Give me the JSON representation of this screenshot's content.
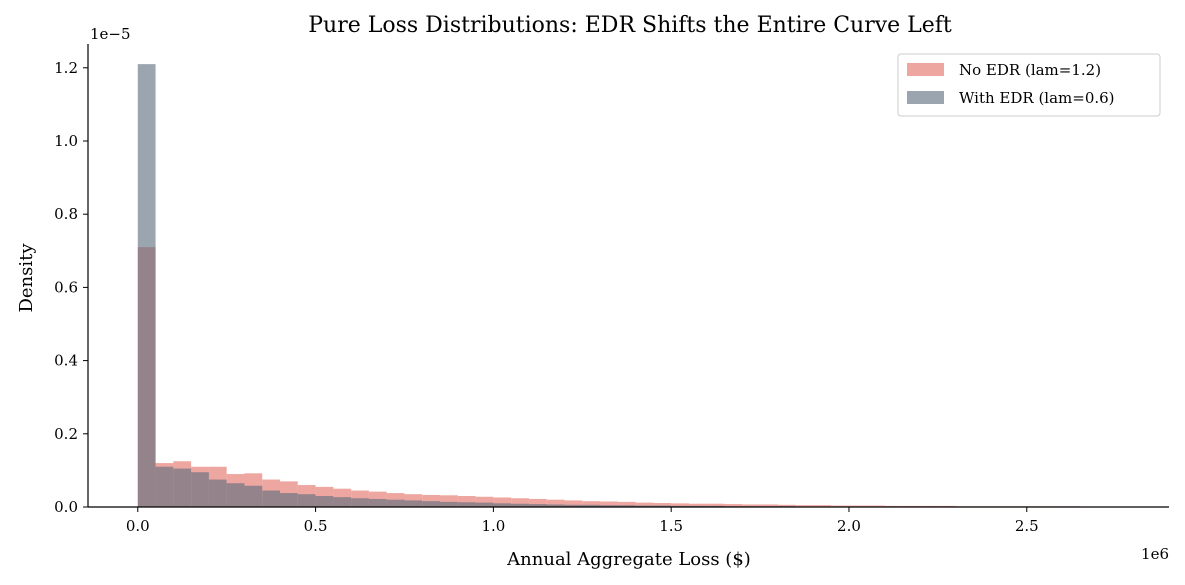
{
  "chart_data": {
    "type": "histogram",
    "title": "Pure Loss Distributions: EDR Shifts the Entire Curve Left",
    "xlabel": "Annual Aggregate Loss ($)",
    "ylabel": "Density",
    "x_multiplier_label": "1e6",
    "y_multiplier_label": "1e−5",
    "xlim": [
      -0.14,
      2.9
    ],
    "ylim": [
      0,
      1.265
    ],
    "x_unit_scale": 1000000,
    "y_unit_scale": 1e-05,
    "x_ticks": [
      0.0,
      0.5,
      1.0,
      1.5,
      2.0,
      2.5
    ],
    "x_tick_labels": [
      "0.0",
      "0.5",
      "1.0",
      "1.5",
      "2.0",
      "2.5"
    ],
    "y_ticks": [
      0.0,
      0.2,
      0.4,
      0.6,
      0.8,
      1.0,
      1.2
    ],
    "y_tick_labels": [
      "0.0",
      "0.2",
      "0.4",
      "0.6",
      "0.8",
      "1.0",
      "1.2"
    ],
    "bin_start": 0.0,
    "bin_width": 0.05,
    "legend_position": "top-right",
    "series": [
      {
        "name": "No EDR (lam=1.2)",
        "color": "#e8847c",
        "opacity": 0.72,
        "values": [
          0.71,
          0.12,
          0.125,
          0.11,
          0.11,
          0.09,
          0.092,
          0.075,
          0.07,
          0.06,
          0.055,
          0.05,
          0.045,
          0.042,
          0.038,
          0.035,
          0.033,
          0.032,
          0.03,
          0.028,
          0.026,
          0.024,
          0.022,
          0.02,
          0.018,
          0.016,
          0.015,
          0.014,
          0.012,
          0.011,
          0.01,
          0.009,
          0.009,
          0.008,
          0.007,
          0.007,
          0.006,
          0.005,
          0.005,
          0.004,
          0.004,
          0.004,
          0.003,
          0.003,
          0.003,
          0.003,
          0.002,
          0.002,
          0.002,
          0.002,
          0.002,
          0.002,
          0.002,
          0.001,
          0.001,
          0.001,
          0.001
        ]
      },
      {
        "name": "With EDR (lam=0.6)",
        "color": "#5d6d7e",
        "opacity": 0.62,
        "values": [
          1.21,
          0.11,
          0.105,
          0.095,
          0.075,
          0.065,
          0.058,
          0.045,
          0.038,
          0.035,
          0.03,
          0.027,
          0.024,
          0.022,
          0.02,
          0.018,
          0.016,
          0.014,
          0.013,
          0.012,
          0.01,
          0.009,
          0.008,
          0.007,
          0.006,
          0.006,
          0.005,
          0.005,
          0.004,
          0.004,
          0.003,
          0.003,
          0.003,
          0.002,
          0.002,
          0.002,
          0.002,
          0.001,
          0.001,
          0.001,
          0.001,
          0.001,
          0.001,
          0.001
        ]
      }
    ]
  }
}
